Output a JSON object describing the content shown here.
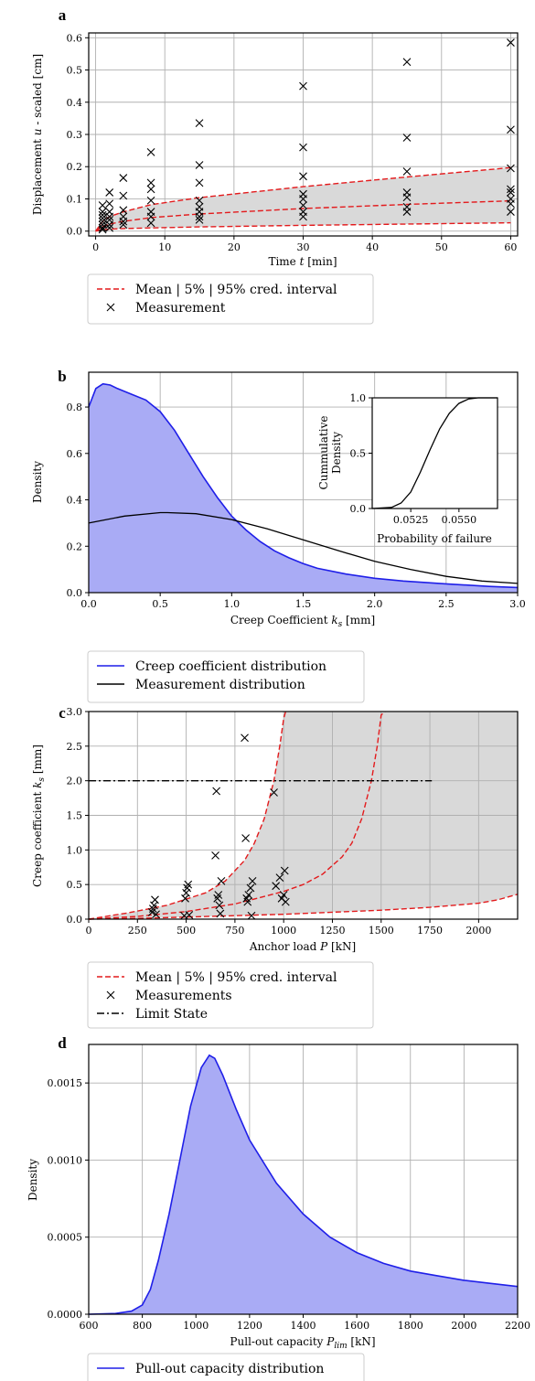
{
  "chart_data": [
    {
      "panel": "a",
      "type": "line",
      "xlabel": "Time t [min]",
      "ylabel": "Displacement u - scaled [cm]",
      "xlim": [
        -1,
        61
      ],
      "ylim": [
        -0.015,
        0.615
      ],
      "xticks": [
        0,
        10,
        20,
        30,
        40,
        50,
        60
      ],
      "yticks": [
        0.0,
        0.1,
        0.2,
        0.3,
        0.4,
        0.5,
        0.6
      ],
      "grid": true,
      "legend": [
        "Mean | 5% | 95% cred. interval",
        "Measurement"
      ],
      "legend_position": "below",
      "series": [
        {
          "kind": "band",
          "x": [
            0,
            1,
            2,
            4,
            8,
            15,
            30,
            45,
            60
          ],
          "lower": [
            0,
            0.004,
            0.006,
            0.008,
            0.01,
            0.013,
            0.018,
            0.022,
            0.026
          ],
          "upper": [
            0,
            0.03,
            0.045,
            0.06,
            0.082,
            0.104,
            0.138,
            0.168,
            0.197
          ]
        },
        {
          "kind": "line",
          "x": [
            0,
            1,
            2,
            4,
            8,
            15,
            30,
            45,
            60
          ],
          "y": [
            0,
            0.014,
            0.022,
            0.03,
            0.042,
            0.053,
            0.07,
            0.083,
            0.094
          ]
        },
        {
          "kind": "markers",
          "x": [
            1,
            1,
            1,
            1,
            1,
            1,
            1,
            1,
            2,
            2,
            2,
            2,
            2,
            2,
            2,
            4,
            4,
            4,
            4,
            4,
            4,
            8,
            8,
            8,
            8,
            8,
            8,
            8,
            15,
            15,
            15,
            15,
            15,
            15,
            15,
            15,
            30,
            30,
            30,
            30,
            30,
            30,
            30,
            30,
            45,
            45,
            45,
            45,
            45,
            45,
            45,
            60,
            60,
            60,
            60,
            60,
            60,
            60,
            60
          ],
          "y": [
            0.005,
            0.01,
            0.02,
            0.03,
            0.04,
            0.05,
            0.06,
            0.08,
            0.01,
            0.02,
            0.035,
            0.045,
            0.06,
            0.085,
            0.12,
            0.02,
            0.03,
            0.045,
            0.065,
            0.11,
            0.165,
            0.025,
            0.045,
            0.06,
            0.095,
            0.13,
            0.15,
            0.245,
            0.035,
            0.045,
            0.06,
            0.075,
            0.095,
            0.15,
            0.205,
            0.335,
            0.045,
            0.06,
            0.08,
            0.1,
            0.115,
            0.17,
            0.26,
            0.45,
            0.06,
            0.075,
            0.105,
            0.12,
            0.185,
            0.29,
            0.525,
            0.06,
            0.085,
            0.1,
            0.12,
            0.13,
            0.195,
            0.315,
            0.585
          ]
        }
      ]
    },
    {
      "panel": "b",
      "type": "area",
      "xlabel": "Creep Coefficient k_s  [mm]",
      "ylabel": "Density",
      "xlim": [
        0,
        3
      ],
      "ylim": [
        0,
        0.95
      ],
      "xticks": [
        0.0,
        0.5,
        1.0,
        1.5,
        2.0,
        2.5,
        3.0
      ],
      "yticks": [
        0.0,
        0.2,
        0.4,
        0.6,
        0.8
      ],
      "grid": true,
      "legend": [
        "Creep coefficient distribution",
        "Measurement distribution"
      ],
      "legend_position": "below",
      "series": [
        {
          "name": "Creep coefficient distribution",
          "x": [
            0,
            0.05,
            0.1,
            0.15,
            0.2,
            0.3,
            0.4,
            0.5,
            0.6,
            0.7,
            0.8,
            0.9,
            1.0,
            1.1,
            1.2,
            1.3,
            1.4,
            1.5,
            1.6,
            1.8,
            2.0,
            2.2,
            2.5,
            2.8,
            3.0
          ],
          "y": [
            0.8,
            0.88,
            0.9,
            0.895,
            0.88,
            0.855,
            0.83,
            0.78,
            0.7,
            0.6,
            0.5,
            0.41,
            0.33,
            0.27,
            0.22,
            0.18,
            0.15,
            0.125,
            0.105,
            0.08,
            0.062,
            0.05,
            0.038,
            0.027,
            0.022
          ]
        },
        {
          "name": "Measurement distribution",
          "x": [
            0,
            0.25,
            0.5,
            0.55,
            0.75,
            1.0,
            1.25,
            1.5,
            1.75,
            2.0,
            2.25,
            2.5,
            2.75,
            3.0
          ],
          "y": [
            0.3,
            0.33,
            0.345,
            0.345,
            0.34,
            0.315,
            0.275,
            0.228,
            0.18,
            0.135,
            0.1,
            0.07,
            0.05,
            0.04
          ]
        }
      ],
      "inset": {
        "type": "line",
        "xlabel": "Probability of failure",
        "ylabel": "Cummulative Density",
        "xticks": [
          0.0525,
          0.055
        ],
        "xtick_labels": [
          "0.0525",
          "0.0550"
        ],
        "yticks": [
          0.0,
          0.5,
          1.0
        ],
        "xlim": [
          0.0505,
          0.057
        ],
        "ylim": [
          0,
          1
        ],
        "x": [
          0.0505,
          0.0515,
          0.052,
          0.0525,
          0.053,
          0.0535,
          0.054,
          0.0545,
          0.055,
          0.0555,
          0.056,
          0.057
        ],
        "y": [
          0,
          0.01,
          0.05,
          0.15,
          0.33,
          0.53,
          0.72,
          0.86,
          0.95,
          0.99,
          1.0,
          1.0
        ]
      }
    },
    {
      "panel": "c",
      "type": "line",
      "xlabel": "Anchor load P [kN]",
      "ylabel": "Creep coefficient k_s [mm]",
      "xlim": [
        0,
        2200
      ],
      "ylim": [
        0,
        3
      ],
      "xticks": [
        0,
        250,
        500,
        750,
        1000,
        1250,
        1500,
        1750,
        2000
      ],
      "yticks": [
        0.0,
        0.5,
        1.0,
        1.5,
        2.0,
        2.5,
        3.0
      ],
      "grid": true,
      "legend": [
        "Mean | 5% | 95% cred. interval",
        "Measurements",
        "Limit State"
      ],
      "legend_position": "below",
      "series": [
        {
          "kind": "band_upper",
          "x": [
            0,
            200,
            400,
            600,
            700,
            800,
            850,
            900,
            950,
            980,
            1000,
            1010,
            1020
          ],
          "y": [
            0,
            0.09,
            0.2,
            0.38,
            0.55,
            0.85,
            1.1,
            1.45,
            2.0,
            2.5,
            2.9,
            3.0,
            3.0
          ]
        },
        {
          "kind": "line",
          "x": [
            0,
            250,
            500,
            750,
            1000,
            1100,
            1200,
            1300,
            1350,
            1400,
            1450,
            1480,
            1500,
            1520
          ],
          "y": [
            0,
            0.04,
            0.11,
            0.22,
            0.4,
            0.5,
            0.65,
            0.9,
            1.1,
            1.45,
            2.0,
            2.5,
            2.95,
            3.0
          ]
        },
        {
          "kind": "band_lower",
          "x": [
            0,
            250,
            500,
            750,
            1000,
            1250,
            1500,
            1750,
            2000,
            2100,
            2200
          ],
          "y": [
            0,
            0.01,
            0.03,
            0.05,
            0.07,
            0.1,
            0.13,
            0.17,
            0.23,
            0.28,
            0.36
          ]
        },
        {
          "kind": "markers",
          "x": [
            325,
            330,
            335,
            340,
            345,
            490,
            495,
            500,
            505,
            510,
            515,
            650,
            655,
            660,
            665,
            670,
            675,
            680,
            800,
            805,
            810,
            815,
            820,
            830,
            835,
            840,
            950,
            960,
            980,
            990,
            1000,
            1005,
            1010
          ],
          "y": [
            0.1,
            0.15,
            0.2,
            0.28,
            0.07,
            0.05,
            0.3,
            0.38,
            0.45,
            0.5,
            0.06,
            0.92,
            1.85,
            0.3,
            0.35,
            0.2,
            0.08,
            0.55,
            2.62,
            1.17,
            0.3,
            0.25,
            0.35,
            0.45,
            0.05,
            0.55,
            1.83,
            0.48,
            0.6,
            0.3,
            0.35,
            0.7,
            0.25
          ]
        },
        {
          "kind": "limit",
          "x": [
            0,
            1760
          ],
          "y": [
            2.0,
            2.0
          ]
        }
      ]
    },
    {
      "panel": "d",
      "type": "area",
      "xlabel": "Pull-out capacity P_lim [kN]",
      "ylabel": "Density",
      "xlim": [
        600,
        2200
      ],
      "ylim": [
        0,
        0.00175
      ],
      "xticks": [
        600,
        800,
        1000,
        1200,
        1400,
        1600,
        1800,
        2000,
        2200
      ],
      "yticks": [
        0.0,
        0.0005,
        0.001,
        0.0015
      ],
      "ytick_labels": [
        "0.0000",
        "0.0005",
        "0.0010",
        "0.0015"
      ],
      "grid": true,
      "legend": [
        "Pull-out capacity distribution"
      ],
      "legend_position": "below",
      "series": [
        {
          "name": "Pull-out capacity distribution",
          "x": [
            600,
            700,
            760,
            800,
            830,
            860,
            900,
            940,
            980,
            1020,
            1050,
            1070,
            1100,
            1150,
            1200,
            1300,
            1400,
            1500,
            1600,
            1700,
            1800,
            1900,
            2000,
            2100,
            2200
          ],
          "y": [
            0,
            5e-06,
            2e-05,
            6e-05,
            0.00016,
            0.00035,
            0.00065,
            0.001,
            0.00135,
            0.0016,
            0.00168,
            0.00166,
            0.00155,
            0.00133,
            0.00113,
            0.00085,
            0.00065,
            0.0005,
            0.0004,
            0.00033,
            0.00028,
            0.00025,
            0.00022,
            0.0002,
            0.00018
          ]
        }
      ]
    }
  ],
  "panel_labels": [
    "a",
    "b",
    "c",
    "d"
  ],
  "colors": {
    "mean": "#e31a1c",
    "band": "#d9d9d9",
    "creep_fill": "#a9abf5",
    "creep_line": "#1f1fe8",
    "measurement_line": "#000000",
    "pullout_fill": "#a9abf5",
    "pullout_line": "#1f1fe8"
  }
}
